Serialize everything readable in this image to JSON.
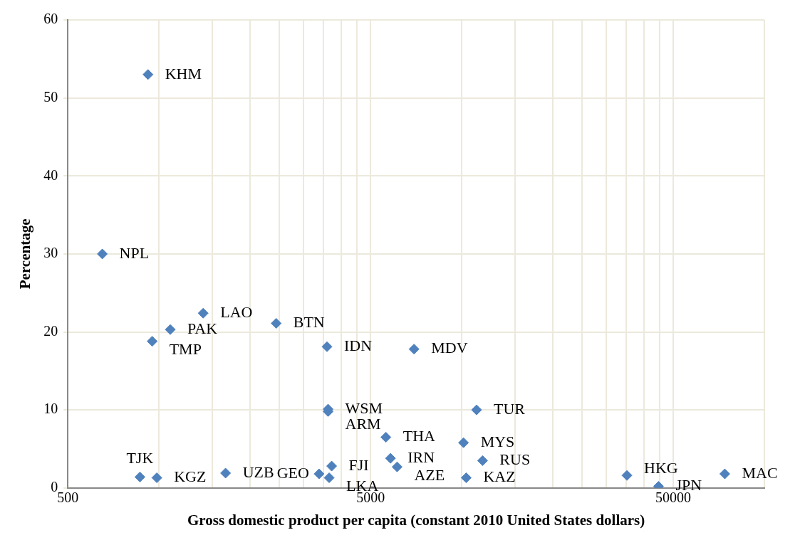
{
  "chart_data": {
    "type": "scatter",
    "xlabel": "Gross domestic product per capita (constant 2010 United States dollars)",
    "ylabel": "Percentage",
    "log": "x",
    "xlim": [
      500,
      100000
    ],
    "xticks": [
      500,
      {
        "value": 1000,
        "label": null
      },
      {
        "value": 1500,
        "label": null
      },
      {
        "value": 2000,
        "label": null
      },
      {
        "value": 2500,
        "label": null
      },
      {
        "value": 3000,
        "label": null
      },
      {
        "value": 3500,
        "label": null
      },
      {
        "value": 4000,
        "label": null
      },
      {
        "value": 4500,
        "label": null
      },
      5000,
      {
        "value": 10000,
        "label": null
      },
      {
        "value": 15000,
        "label": null
      },
      {
        "value": 20000,
        "label": null
      },
      {
        "value": 25000,
        "label": null
      },
      {
        "value": 30000,
        "label": null
      },
      {
        "value": 35000,
        "label": null
      },
      {
        "value": 40000,
        "label": null
      },
      {
        "value": 45000,
        "label": null
      },
      50000,
      {
        "value": 100000,
        "label": null
      }
    ],
    "ylim": [
      0,
      60
    ],
    "yticks": [
      0,
      10,
      20,
      30,
      40,
      50,
      60
    ],
    "grid": true,
    "legend": false,
    "marker": "diamond",
    "series": [
      {
        "color": "#4f81bd",
        "x": [
          920,
          650,
          1400,
          1090,
          950,
          2440,
          3590,
          6960,
          3620,
          3620,
          11200,
          5620,
          10140,
          3720,
          5820,
          6120,
          11720,
          10350,
          3650,
          3380,
          1660,
          865,
          984,
          35150,
          44700,
          74000
        ],
        "values": [
          53.0,
          30.0,
          22.4,
          20.3,
          18.8,
          21.1,
          18.1,
          17.8,
          10.1,
          9.8,
          10.0,
          6.5,
          5.8,
          2.8,
          3.8,
          2.7,
          3.5,
          1.3,
          1.3,
          1.8,
          1.9,
          1.4,
          1.3,
          1.6,
          0.2,
          1.8
        ]
      }
    ],
    "annotations": [
      {
        "text": "KHM",
        "x": 920,
        "y": 53.0
      },
      {
        "text": "NPL",
        "x": 650,
        "y": 30.0
      },
      {
        "text": "LAO",
        "x": 1400,
        "y": 22.4
      },
      {
        "text": "PAK",
        "x": 1090,
        "y": 20.3
      },
      {
        "text": "TMP",
        "x": 950,
        "y": 18.8
      },
      {
        "text": "BTN",
        "x": 2440,
        "y": 21.1
      },
      {
        "text": "IDN",
        "x": 3590,
        "y": 18.1
      },
      {
        "text": "MDV",
        "x": 6960,
        "y": 17.8
      },
      {
        "text": "WSM",
        "x": 3620,
        "y": 10.1
      },
      {
        "text": "ARM",
        "x": 3620,
        "y": 9.8
      },
      {
        "text": "TUR",
        "x": 11200,
        "y": 10.0
      },
      {
        "text": "THA",
        "x": 5620,
        "y": 6.5
      },
      {
        "text": "MYS",
        "x": 10140,
        "y": 5.8
      },
      {
        "text": "FJI",
        "x": 3720,
        "y": 2.8
      },
      {
        "text": "IRN",
        "x": 5820,
        "y": 3.8
      },
      {
        "text": "AZE",
        "x": 6120,
        "y": 2.7
      },
      {
        "text": "RUS",
        "x": 11720,
        "y": 3.5
      },
      {
        "text": "KAZ",
        "x": 10350,
        "y": 1.3
      },
      {
        "text": "LKA",
        "x": 3650,
        "y": 1.3
      },
      {
        "text": "GEO",
        "x": 3380,
        "y": 1.8
      },
      {
        "text": "UZB",
        "x": 1660,
        "y": 1.9
      },
      {
        "text": "TJK",
        "x": 865,
        "y": 1.4
      },
      {
        "text": "KGZ",
        "x": 984,
        "y": 1.3
      },
      {
        "text": "HKG",
        "x": 35150,
        "y": 1.6
      },
      {
        "text": "JPN",
        "x": 44700,
        "y": 0.2
      },
      {
        "text": "MAC",
        "x": 74000,
        "y": 1.8
      }
    ]
  }
}
